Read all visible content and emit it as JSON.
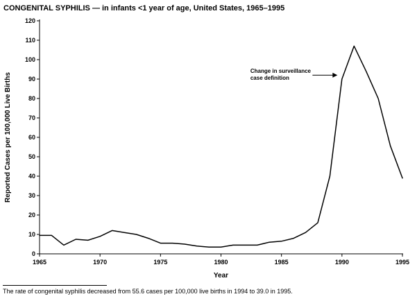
{
  "chart_data": {
    "type": "line",
    "title": "CONGENITAL SYPHILIS — in infants <1 year of age, United States, 1965–1995",
    "xlabel": "Year",
    "ylabel": "Reported Cases per 100,000 Live Births",
    "xlim": [
      1965,
      1995
    ],
    "ylim": [
      0,
      120
    ],
    "xticks": [
      1965,
      1970,
      1975,
      1980,
      1985,
      1990,
      1995
    ],
    "yticks": [
      0,
      10,
      20,
      30,
      40,
      50,
      60,
      70,
      80,
      90,
      100,
      110,
      120
    ],
    "grid": false,
    "legend": "none",
    "line_color": "#000000",
    "x": [
      1965,
      1966,
      1967,
      1968,
      1969,
      1970,
      1971,
      1972,
      1973,
      1974,
      1975,
      1976,
      1977,
      1978,
      1979,
      1980,
      1981,
      1982,
      1983,
      1984,
      1985,
      1986,
      1987,
      1988,
      1989,
      1990,
      1991,
      1992,
      1993,
      1994,
      1995
    ],
    "values": [
      9.5,
      9.5,
      4.5,
      7.5,
      7,
      9,
      12,
      11,
      10,
      8,
      5.5,
      5.5,
      5,
      4,
      3.5,
      3.5,
      4.5,
      4.5,
      4.5,
      6,
      6.5,
      8,
      11,
      16,
      40,
      90,
      107,
      94,
      80,
      55.6,
      39
    ],
    "annotation": {
      "line1": "Change in surveillance",
      "line2": "case definition",
      "arrow_target_year": 1989.8,
      "arrow_target_value": 92
    },
    "footnote": "The rate of congenital syphilis decreased from 55.6 cases per 100,000 live births in 1994 to 39.0 in 1995."
  }
}
